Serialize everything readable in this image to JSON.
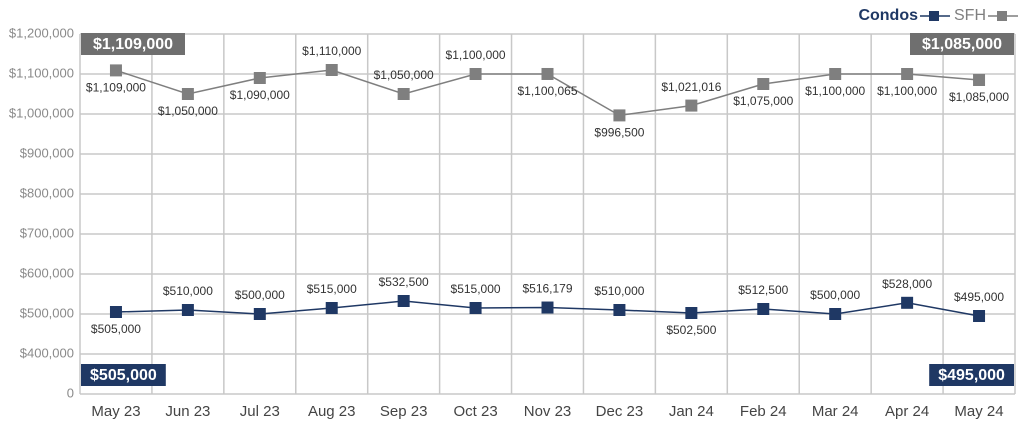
{
  "chart_data": {
    "type": "line",
    "categories": [
      "May 23",
      "Jun 23",
      "Jul 23",
      "Aug 23",
      "Sep 23",
      "Oct 23",
      "Nov 23",
      "Dec 23",
      "Jan 24",
      "Feb 24",
      "Mar 24",
      "Apr 24",
      "May 24"
    ],
    "series": [
      {
        "name": "Condos",
        "color": "#1f3864",
        "values": [
          505000,
          510000,
          500000,
          515000,
          532500,
          515000,
          516179,
          510000,
          502500,
          512500,
          500000,
          528000,
          495000
        ],
        "value_labels": [
          "$505,000",
          "$510,000",
          "$500,000",
          "$515,000",
          "$532,500",
          "$515,000",
          "$516,179",
          "$510,000",
          "$502,500",
          "$512,500",
          "$500,000",
          "$528,000",
          "$495,000"
        ]
      },
      {
        "name": "SFH",
        "color": "#7f7f7f",
        "values": [
          1109000,
          1050000,
          1090000,
          1110000,
          1050000,
          1100000,
          1100065,
          996500,
          1021016,
          1075000,
          1100000,
          1100000,
          1085000
        ],
        "value_labels": [
          "$1,109,000",
          "$1,050,000",
          "$1,090,000",
          "$1,110,000",
          "$1,050,000",
          "$1,100,000",
          "$1,100,065",
          "$996,500",
          "$1,021,016",
          "$1,075,000",
          "$1,100,000",
          "$1,100,000",
          "$1,085,000"
        ]
      }
    ],
    "ylim": [
      0,
      1200000
    ],
    "yticks": [
      0,
      {
        "value": 400000,
        "label": "$400,000"
      },
      {
        "value": 500000,
        "label": "$500,000"
      },
      {
        "value": 600000,
        "label": "$600,000"
      },
      {
        "value": 700000,
        "label": "$700,000"
      },
      {
        "value": 800000,
        "label": "$800,000"
      },
      {
        "value": 900000,
        "label": "$900,000"
      },
      {
        "value": 1000000,
        "label": "$1,000,000"
      },
      {
        "value": 1100000,
        "label": "$1,100,000"
      },
      {
        "value": 1200000,
        "label": "$1,200,000"
      }
    ],
    "y_axis_broken": true,
    "grid": true,
    "legend": "top-right"
  }
}
